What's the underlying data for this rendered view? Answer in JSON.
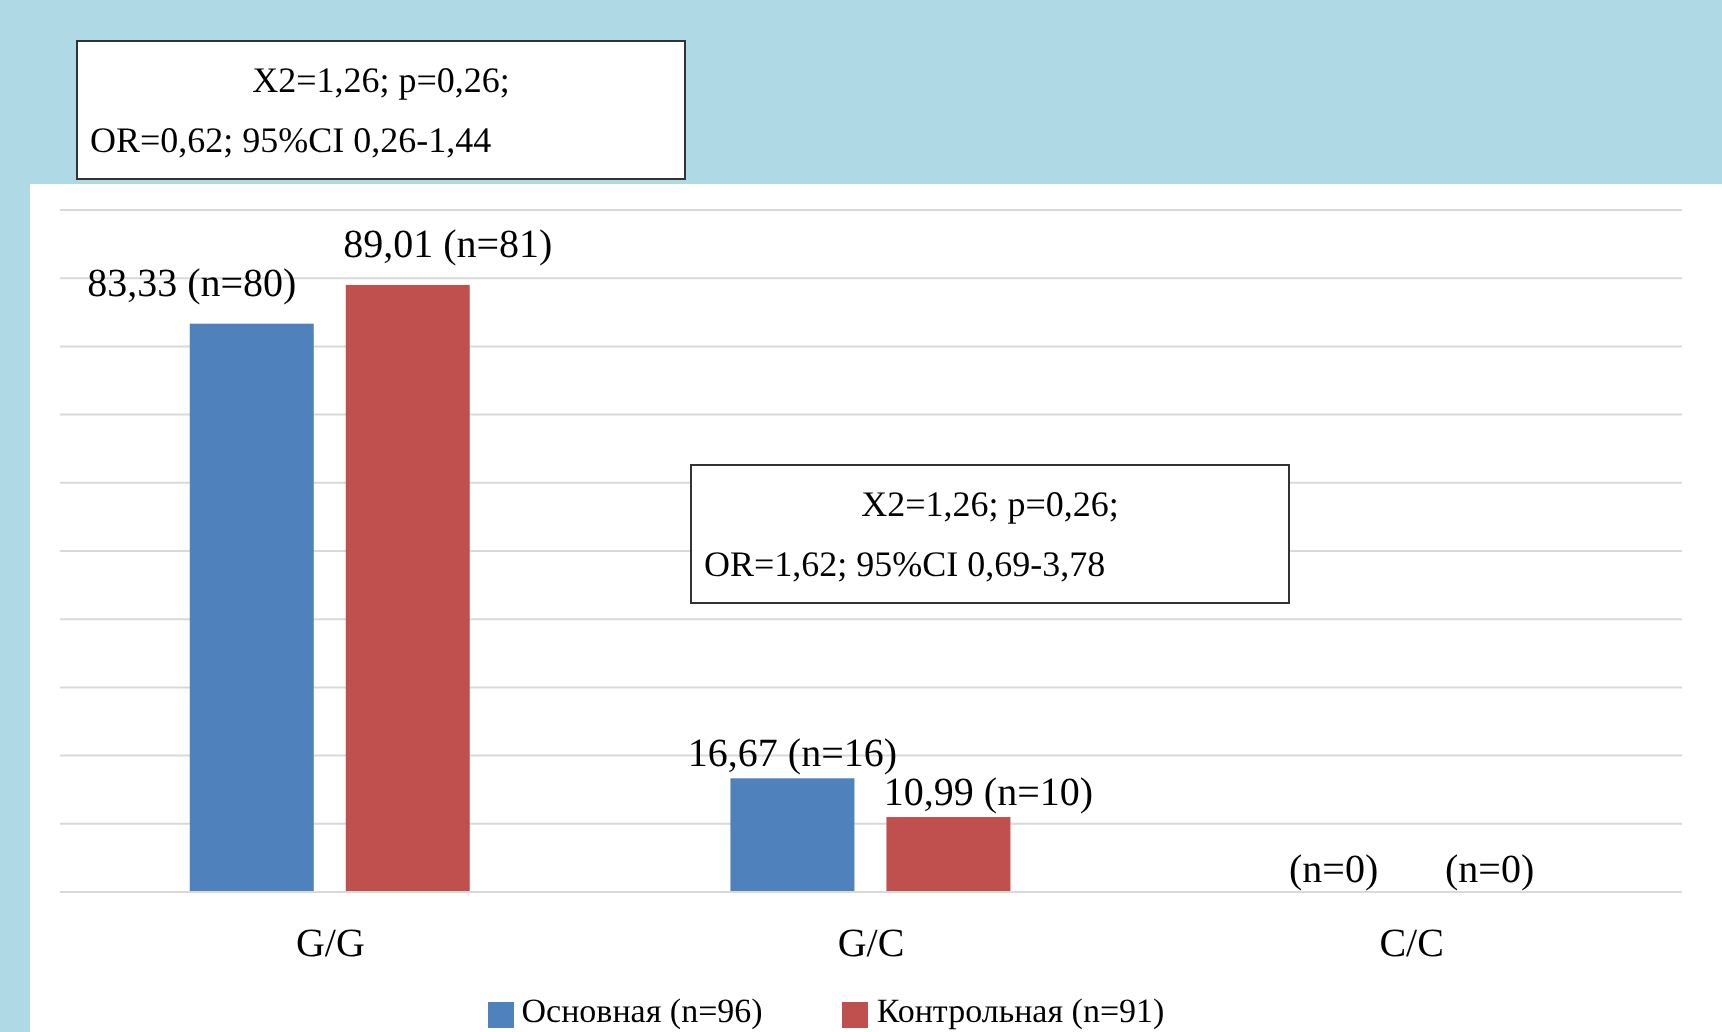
{
  "chart_data": {
    "type": "bar",
    "categories": [
      "G/G",
      "G/C",
      "C/C"
    ],
    "series": [
      {
        "name": "Основная (n=96)",
        "color": "#4f81bd",
        "values": [
          83.33,
          16.67,
          0
        ],
        "value_labels": [
          "83,33 (n=80)",
          "16,67 (n=16)",
          null
        ]
      },
      {
        "name": "Контрольная (n=91)",
        "color": "#c0504d",
        "values": [
          89.01,
          10.99,
          0
        ],
        "value_labels": [
          "89,01 (n=81)",
          "10,99 (n=10)",
          null
        ]
      }
    ],
    "ylim": [
      0,
      100
    ],
    "yticks": [
      {
        "value": 0,
        "label": null
      },
      {
        "value": 10,
        "label": null
      },
      {
        "value": 20,
        "label": null
      },
      {
        "value": 30,
        "label": null
      },
      {
        "value": 40,
        "label": null
      },
      {
        "value": 50,
        "label": null
      },
      {
        "value": 60,
        "label": null
      },
      {
        "value": 70,
        "label": null
      },
      {
        "value": 80,
        "label": null
      },
      {
        "value": 90,
        "label": null
      },
      {
        "value": 100,
        "label": null
      }
    ],
    "grid": "y",
    "legend": "bottom",
    "tick_labels": "x",
    "annotations": [
      "X2=1,26; p=0,26;\nOR=0,62; 95%CI 0,26-1,44",
      "X2=1,26; p=0,26;\nOR=1,62; 95%CI 0,69-3,78",
      {
        "text": "(n=0)",
        "x": "C/C",
        "y": 0
      },
      {
        "text": "(n=0)",
        "x": "C/C",
        "y": 0
      }
    ]
  }
}
